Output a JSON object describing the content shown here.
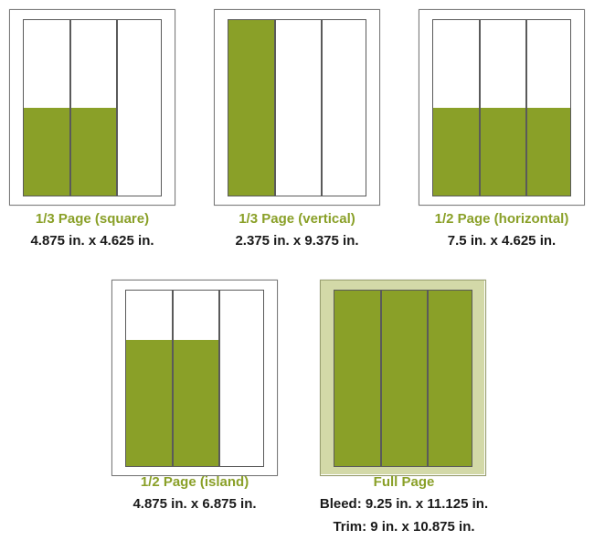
{
  "accent_color": "#8aa028",
  "bleed_color": "#d3d9a8",
  "ad_sizes": [
    {
      "name": "1/3 Page (square)",
      "dimensions": "4.875 in. x 4.625 in."
    },
    {
      "name": "1/3 Page (vertical)",
      "dimensions": "2.375 in. x 9.375 in."
    },
    {
      "name": "1/2 Page (horizontal)",
      "dimensions": "7.5 in. x 4.625 in."
    },
    {
      "name": "1/2 Page (island)",
      "dimensions": "4.875 in. x 6.875 in."
    },
    {
      "name": "Full Page",
      "bleed": "Bleed: 9.25 in. x 11.125 in.",
      "trim": "Trim: 9 in. x 10.875 in."
    }
  ]
}
